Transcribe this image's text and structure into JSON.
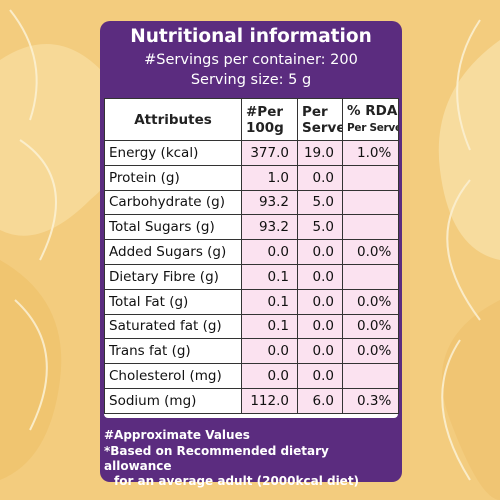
{
  "header": {
    "title": "Nutritional information",
    "servings_per_container": "#Servings per container: 200",
    "serving_size": "Serving size: 5 g"
  },
  "table": {
    "columns": {
      "attributes": "Attributes",
      "per_100g_line1": "#Per",
      "per_100g_line2": "100g",
      "per_serve_line1": "Per",
      "per_serve_line2": "Serve",
      "rda_line1": "% RDA",
      "rda_line2": "Per Serve*"
    },
    "rows": [
      {
        "attribute": "Energy (kcal)",
        "per_100g": "377.0",
        "per_serve": "19.0",
        "rda": "1.0%"
      },
      {
        "attribute": "Protein (g)",
        "per_100g": "1.0",
        "per_serve": "0.0",
        "rda": ""
      },
      {
        "attribute": "Carbohydrate (g)",
        "per_100g": "93.2",
        "per_serve": "5.0",
        "rda": ""
      },
      {
        "attribute": "Total Sugars (g)",
        "per_100g": "93.2",
        "per_serve": "5.0",
        "rda": ""
      },
      {
        "attribute": "Added Sugars (g)",
        "per_100g": "0.0",
        "per_serve": "0.0",
        "rda": "0.0%"
      },
      {
        "attribute": "Dietary Fibre (g)",
        "per_100g": "0.1",
        "per_serve": "0.0",
        "rda": ""
      },
      {
        "attribute": "Total Fat (g)",
        "per_100g": "0.1",
        "per_serve": "0.0",
        "rda": "0.0%"
      },
      {
        "attribute": "Saturated fat (g)",
        "per_100g": "0.1",
        "per_serve": "0.0",
        "rda": "0.0%"
      },
      {
        "attribute": "Trans fat (g)",
        "per_100g": "0.0",
        "per_serve": "0.0",
        "rda": "0.0%"
      },
      {
        "attribute": "Cholesterol (mg)",
        "per_100g": "0.0",
        "per_serve": "0.0",
        "rda": ""
      },
      {
        "attribute": "Sodium (mg)",
        "per_100g": "112.0",
        "per_serve": "6.0",
        "rda": "0.3%"
      }
    ]
  },
  "footnotes": {
    "approx": "#Approximate Values",
    "rda_note_line1": "*Based on Recommended dietary allowance",
    "rda_note_line2": "for an average adult (2000kcal diet)"
  },
  "colors": {
    "panel": "#5b2c7f",
    "background": "#f3cc7e",
    "cell_tint": "#fbe2f0",
    "text_on_panel": "#ffffff"
  }
}
